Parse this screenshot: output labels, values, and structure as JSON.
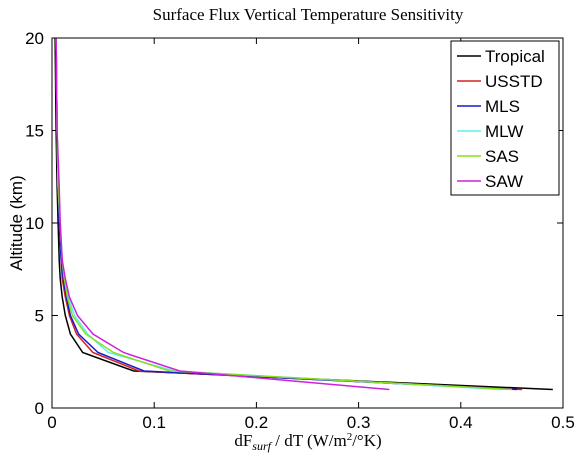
{
  "chart_data": {
    "type": "line",
    "title": "Surface Flux Vertical Temperature Sensitivity",
    "xlabel": {
      "main": "dF",
      "sub": "surf",
      "mid": " / dT (W/m",
      "sup": "2",
      "end": "/°K)"
    },
    "ylabel": "Altitude (km)",
    "y": [
      1,
      2,
      3,
      4,
      5,
      6,
      7,
      8,
      10,
      12,
      15,
      20
    ],
    "series": [
      {
        "name": "Tropical",
        "color": "#000000",
        "values": [
          0.49,
          0.08,
          0.03,
          0.018,
          0.013,
          0.01,
          0.008,
          0.007,
          0.006,
          0.005,
          0.004,
          0.003
        ]
      },
      {
        "name": "USSTD",
        "color": "#d62020",
        "values": [
          0.46,
          0.085,
          0.04,
          0.024,
          0.017,
          0.013,
          0.01,
          0.009,
          0.007,
          0.006,
          0.005,
          0.004
        ]
      },
      {
        "name": "MLS",
        "color": "#1a1acc",
        "values": [
          0.455,
          0.09,
          0.045,
          0.026,
          0.018,
          0.014,
          0.011,
          0.009,
          0.007,
          0.006,
          0.005,
          0.004
        ]
      },
      {
        "name": "MLW",
        "color": "#5ff0f0",
        "values": [
          0.44,
          0.12,
          0.055,
          0.035,
          0.022,
          0.016,
          0.012,
          0.01,
          0.008,
          0.006,
          0.005,
          0.004
        ]
      },
      {
        "name": "SAS",
        "color": "#88dd22",
        "values": [
          0.45,
          0.115,
          0.06,
          0.033,
          0.02,
          0.015,
          0.012,
          0.01,
          0.008,
          0.006,
          0.005,
          0.004
        ]
      },
      {
        "name": "SAW",
        "color": "#cc22dd",
        "values": [
          0.33,
          0.125,
          0.07,
          0.04,
          0.025,
          0.017,
          0.013,
          0.01,
          0.008,
          0.007,
          0.005,
          0.004
        ]
      }
    ],
    "xlim": [
      0,
      0.5
    ],
    "xticks": [
      0,
      0.1,
      0.2,
      0.3,
      0.4,
      0.5
    ],
    "ylim": [
      0,
      20
    ],
    "yticks": [
      0,
      5,
      10,
      15,
      20
    ],
    "legend": "upper right"
  }
}
